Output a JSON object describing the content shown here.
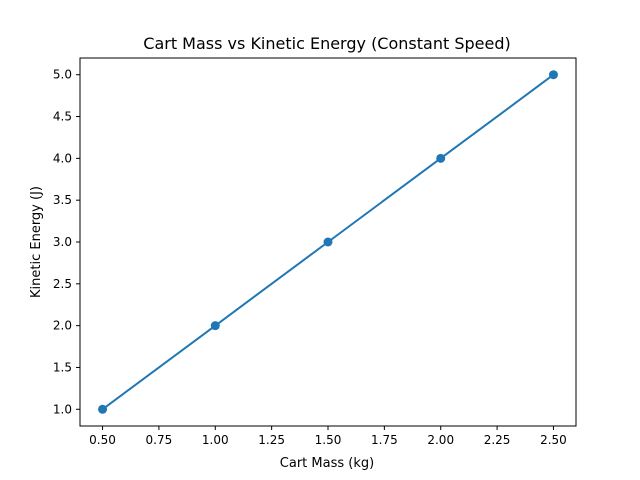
{
  "chart_data": {
    "type": "line",
    "title": "Cart Mass vs Kinetic Energy (Constant Speed)",
    "xlabel": "Cart Mass (kg)",
    "ylabel": "Kinetic Energy (J)",
    "x": [
      0.5,
      1.0,
      1.5,
      2.0,
      2.5
    ],
    "series": [
      {
        "values": [
          1.0,
          2.0,
          3.0,
          4.0,
          5.0
        ],
        "color": "#1f77b4",
        "marker": "circle"
      }
    ],
    "xlim": [
      0.4,
      2.6
    ],
    "ylim": [
      0.8,
      5.2
    ],
    "xticks": [
      "0.50",
      "0.75",
      "1.00",
      "1.25",
      "1.50",
      "1.75",
      "2.00",
      "2.25",
      "2.50"
    ],
    "xtick_values": [
      0.5,
      0.75,
      1.0,
      1.25,
      1.5,
      1.75,
      2.0,
      2.25,
      2.5
    ],
    "yticks": [
      "1.0",
      "1.5",
      "2.0",
      "2.5",
      "3.0",
      "3.5",
      "4.0",
      "4.5",
      "5.0"
    ],
    "ytick_values": [
      1.0,
      1.5,
      2.0,
      2.5,
      3.0,
      3.5,
      4.0,
      4.5,
      5.0
    ],
    "grid": false,
    "legend": "none"
  }
}
